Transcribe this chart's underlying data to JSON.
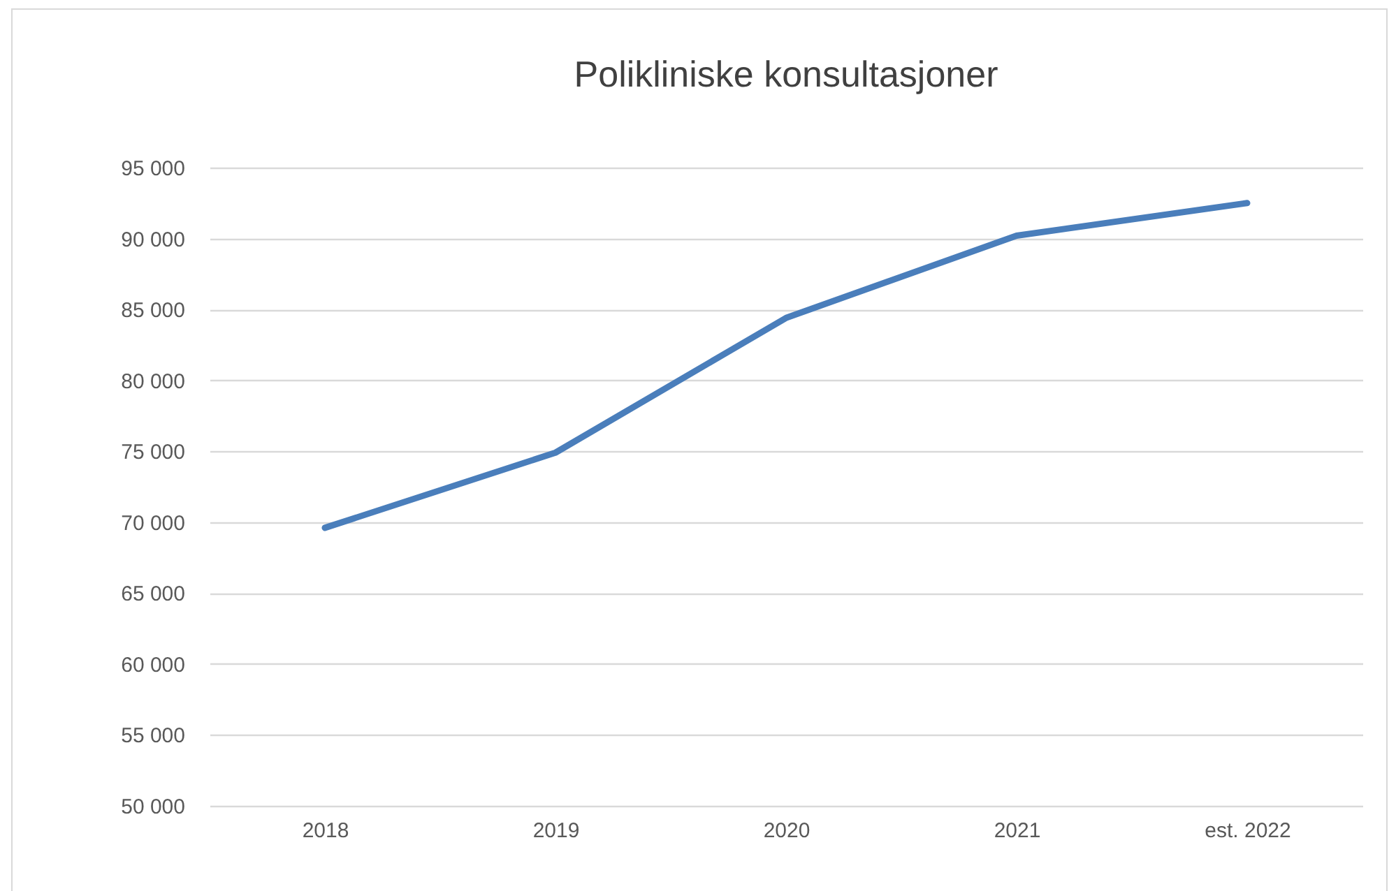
{
  "chart_data": {
    "type": "line",
    "title": "Polikliniske konsultasjoner",
    "categories": [
      "2018",
      "2019",
      "2020",
      "2021",
      "est. 2022"
    ],
    "series": [
      {
        "color": "#4a7ebb",
        "values": [
          69600,
          74900,
          84400,
          90200,
          92500
        ]
      }
    ],
    "ylim": [
      50000,
      95000
    ],
    "yticks": [
      {
        "value": 50000,
        "label": "50 000"
      },
      {
        "value": 55000,
        "label": "55 000"
      },
      {
        "value": 60000,
        "label": "60 000"
      },
      {
        "value": 65000,
        "label": "65 000"
      },
      {
        "value": 70000,
        "label": "70 000"
      },
      {
        "value": 75000,
        "label": "75 000"
      },
      {
        "value": 80000,
        "label": "80 000"
      },
      {
        "value": 85000,
        "label": "85 000"
      },
      {
        "value": 90000,
        "label": "90 000"
      },
      {
        "value": 95000,
        "label": "95 000"
      }
    ],
    "grid": "y",
    "marker": "none",
    "line_style": "solid"
  }
}
